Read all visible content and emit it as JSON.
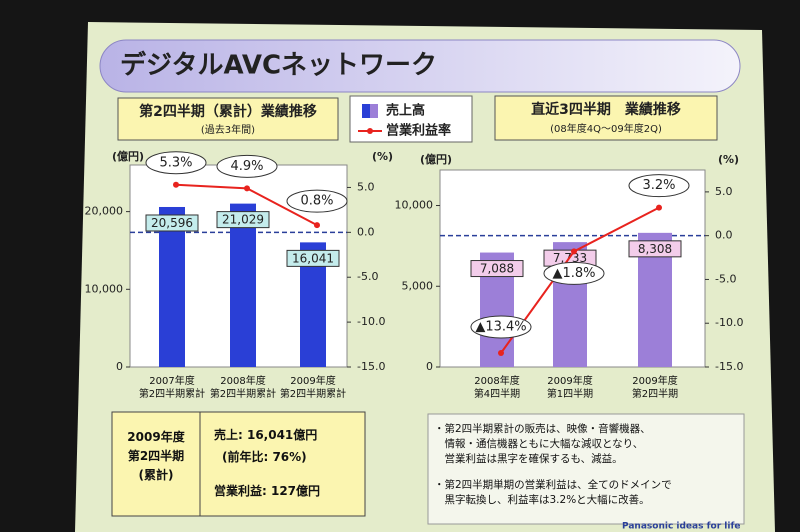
{
  "slide": {
    "title": "デジタルAVCネットワーク",
    "summary": {
      "period": "2009年度\n第2四半期\n(累計)",
      "sales": "売上: 16,041億円",
      "yoy": "(前年比: 76%)",
      "profit": "営業利益: 127億円"
    },
    "notes": [
      "・第2四半期累計の販売は、映像・音響機器、\n　情報・通信機器ともに大幅な減収となり、\n　営業利益は黒字を確保するも、減益。",
      "・第2四半期単期の営業利益は、全てのドメインで\n　黒字転換し、利益率は3.2%と大幅に改善。"
    ],
    "footer": "Panasonic ideas for life"
  },
  "chart_data": [
    {
      "type": "combo",
      "title": "第2四半期（累計）業績推移",
      "subtitle": "(過去3年間)",
      "y_label": "(億円)",
      "y2_label": "(%)",
      "categories": [
        "2007年度\n第2四半期累計",
        "2008年度\n第2四半期累計",
        "2009年度\n第2四半期累計"
      ],
      "ylim": [
        0,
        26000
      ],
      "yticks": [
        0,
        {
          "value": 10000,
          "label": "10,000"
        },
        {
          "value": 20000,
          "label": "20,000"
        }
      ],
      "y2lim": [
        -15,
        7.5
      ],
      "y2ticks": [
        {
          "value": 5,
          "label": "5.0"
        },
        {
          "value": 0,
          "label": "0.0"
        },
        {
          "value": -5,
          "label": "-5.0"
        },
        {
          "value": -10,
          "label": "-10.0"
        },
        {
          "value": -15,
          "label": "-15.0"
        }
      ],
      "zero_line": true,
      "series": [
        {
          "name": "売上高",
          "type": "bar",
          "color": "#2a3fd6",
          "values": [
            20596,
            21029,
            16041
          ],
          "value_labels": [
            "20,596",
            "21,029",
            "16,041"
          ]
        },
        {
          "name": "営業利益率",
          "type": "line",
          "axis": "y2",
          "color": "#e8231e",
          "values": [
            5.3,
            4.9,
            0.8
          ],
          "value_labels": [
            "5.3%",
            "4.9%",
            "0.8%"
          ]
        }
      ]
    },
    {
      "type": "combo",
      "title": "直近3四半期　業績推移",
      "subtitle": "(08年度4Q〜09年度2Q)",
      "y_label": "(億円)",
      "y2_label": "(%)",
      "categories": [
        "2008年度\n第4四半期",
        "2009年度\n第1四半期",
        "2009年度\n第2四半期"
      ],
      "ylim": [
        0,
        12200
      ],
      "yticks": [
        0,
        {
          "value": 5000,
          "label": "5,000"
        },
        {
          "value": 10000,
          "label": "10,000"
        }
      ],
      "y2lim": [
        -15,
        7.5
      ],
      "y2ticks": [
        {
          "value": 5,
          "label": "5.0"
        },
        {
          "value": 0,
          "label": "0.0"
        },
        {
          "value": -5,
          "label": "-5.0"
        },
        {
          "value": -10,
          "label": "-10.0"
        },
        {
          "value": -15,
          "label": "-15.0"
        }
      ],
      "zero_line": true,
      "series": [
        {
          "type": "bar",
          "color": "#9c7fd8",
          "values": [
            7088,
            7733,
            8308
          ],
          "value_labels": [
            "7,088",
            "7,733",
            "8,308"
          ]
        },
        {
          "type": "line",
          "axis": "y2",
          "color": "#e8231e",
          "values": [
            -13.4,
            -1.8,
            3.2
          ],
          "value_labels": [
            "▲13.4%",
            "▲1.8%",
            "3.2%"
          ]
        }
      ]
    }
  ]
}
